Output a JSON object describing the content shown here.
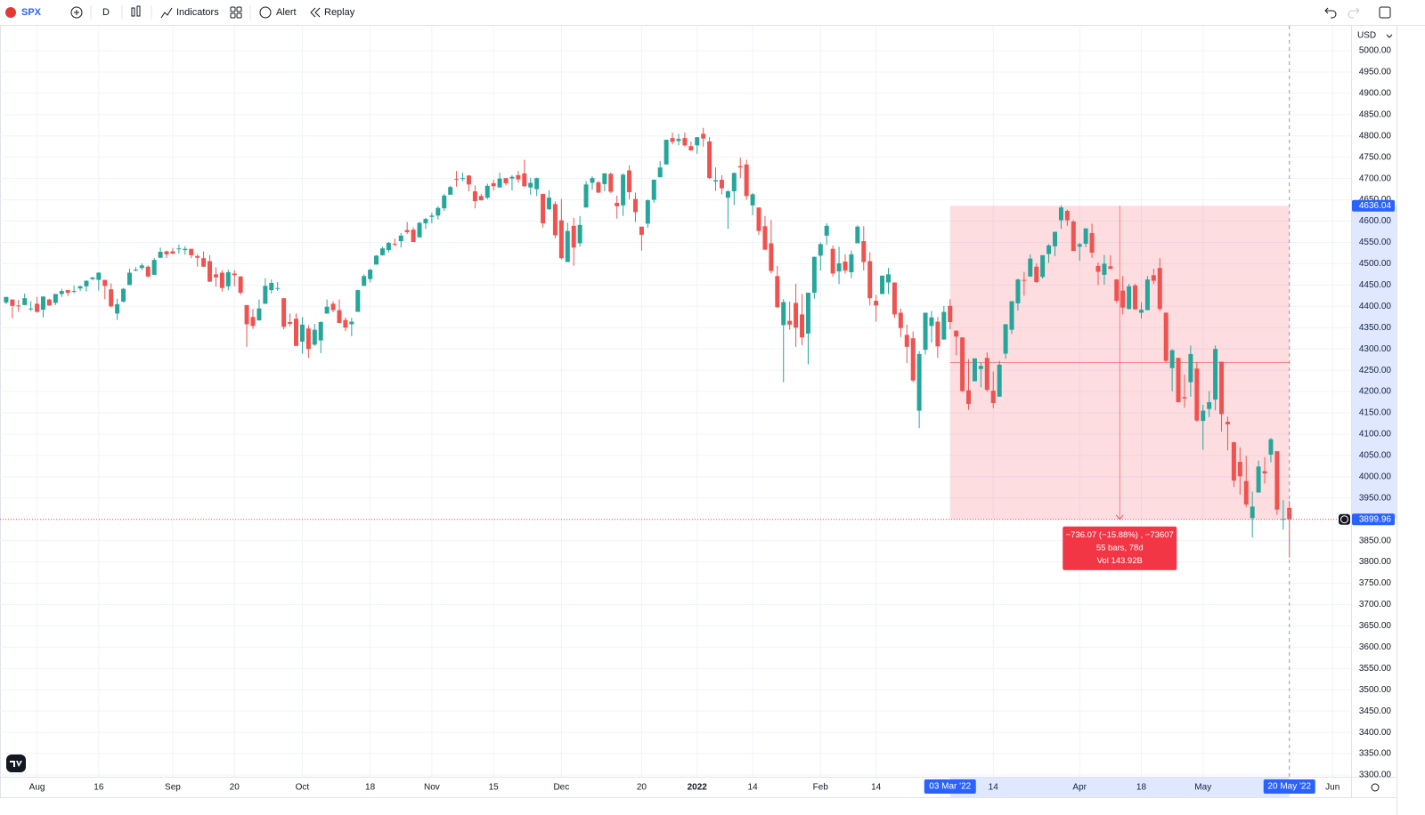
{
  "toolbar": {
    "symbol": "SPX",
    "interval": "D",
    "buttons": [
      "Indicators",
      "Alert",
      "Replay"
    ]
  },
  "chart_data": {
    "type": "candlestick",
    "currency": "USD",
    "colors": {
      "up": "#26a69a",
      "down": "#ef5350",
      "range": "#f23645",
      "axis_marker": "#2962ff"
    },
    "grid": true,
    "xlim": [
      -1,
      218
    ],
    "ylim": [
      3300,
      5000
    ],
    "xticks": [
      {
        "value": 5,
        "label": "Aug"
      },
      {
        "value": 15,
        "label": "16"
      },
      {
        "value": 27,
        "label": "Sep"
      },
      {
        "value": 37,
        "label": "20"
      },
      {
        "value": 48,
        "label": "Oct"
      },
      {
        "value": 59,
        "label": "18"
      },
      {
        "value": 69,
        "label": "Nov"
      },
      {
        "value": 79,
        "label": "15"
      },
      {
        "value": 90,
        "label": "Dec"
      },
      {
        "value": 103,
        "label": "20"
      },
      {
        "value": 112,
        "label": "2022"
      },
      {
        "value": 121,
        "label": "14"
      },
      {
        "value": 132,
        "label": "Feb"
      },
      {
        "value": 141,
        "label": "14"
      },
      {
        "value": 160,
        "label": "14"
      },
      {
        "value": 174,
        "label": "Apr"
      },
      {
        "value": 184,
        "label": "18"
      },
      {
        "value": 194,
        "label": "May"
      },
      {
        "value": 215,
        "label": "Jun"
      }
    ],
    "yticks": [
      {
        "value": 3300,
        "label": "3300.00"
      },
      {
        "value": 3350,
        "label": "3350.00"
      },
      {
        "value": 3400,
        "label": "3400.00"
      },
      {
        "value": 3450,
        "label": "3450.00"
      },
      {
        "value": 3500,
        "label": "3500.00"
      },
      {
        "value": 3550,
        "label": "3550.00"
      },
      {
        "value": 3600,
        "label": "3600.00"
      },
      {
        "value": 3650,
        "label": "3650.00"
      },
      {
        "value": 3700,
        "label": "3700.00"
      },
      {
        "value": 3750,
        "label": "3750.00"
      },
      {
        "value": 3800,
        "label": "3800.00"
      },
      {
        "value": 3850,
        "label": "3850.00"
      },
      {
        "value": 3900,
        "label": "3900.00"
      },
      {
        "value": 3950,
        "label": "3950.00"
      },
      {
        "value": 4000,
        "label": "4000.00"
      },
      {
        "value": 4050,
        "label": "4050.00"
      },
      {
        "value": 4100,
        "label": "4100.00"
      },
      {
        "value": 4150,
        "label": "4150.00"
      },
      {
        "value": 4200,
        "label": "4200.00"
      },
      {
        "value": 4250,
        "label": "4250.00"
      },
      {
        "value": 4300,
        "label": "4300.00"
      },
      {
        "value": 4350,
        "label": "4350.00"
      },
      {
        "value": 4400,
        "label": "4400.00"
      },
      {
        "value": 4450,
        "label": "4450.00"
      },
      {
        "value": 4500,
        "label": "4500.00"
      },
      {
        "value": 4550,
        "label": "4550.00"
      },
      {
        "value": 4600,
        "label": "4600.00"
      },
      {
        "value": 4650,
        "label": "4650.00"
      },
      {
        "value": 4700,
        "label": "4700.00"
      },
      {
        "value": 4750,
        "label": "4750.00"
      },
      {
        "value": 4800,
        "label": "4800.00"
      },
      {
        "value": 4850,
        "label": "4850.00"
      },
      {
        "value": 4900,
        "label": "4900.00"
      },
      {
        "value": 4950,
        "label": "4950.00"
      },
      {
        "value": 5000,
        "label": "5000.00"
      }
    ],
    "price_markers": [
      4636.04,
      3899.96
    ],
    "range_start": {
      "value": 153,
      "label": "03 Mar '22"
    },
    "range_end": {
      "value": 208,
      "label": "20 May '22"
    },
    "measure_lines": [
      "−736.07 (−15.88%) , −73607",
      "55 bars, 78d",
      "Vol 143.92B"
    ],
    "candles": [
      [
        4409,
        4422,
        4405,
        4422
      ],
      [
        4416,
        4416,
        4372,
        4401
      ],
      [
        4402,
        4415,
        4387,
        4400
      ],
      [
        4403,
        4430,
        4403,
        4419
      ],
      [
        4395,
        4412,
        4389,
        4395
      ],
      [
        4406,
        4422,
        4385,
        4387
      ],
      [
        4392,
        4423,
        4374,
        4423
      ],
      [
        4416,
        4418,
        4401,
        4402
      ],
      [
        4408,
        4429,
        4403,
        4429
      ],
      [
        4429,
        4441,
        4422,
        4436
      ],
      [
        4438,
        4439,
        4424,
        4432
      ],
      [
        4436,
        4449,
        4431,
        4436
      ],
      [
        4442,
        4449,
        4436,
        4447
      ],
      [
        4447,
        4461,
        4435,
        4460
      ],
      [
        4464,
        4468,
        4461,
        4468
      ],
      [
        4462,
        4480,
        4437,
        4479
      ],
      [
        4462,
        4462,
        4417,
        4448
      ],
      [
        4440,
        4454,
        4397,
        4400
      ],
      [
        4383,
        4418,
        4368,
        4405
      ],
      [
        4411,
        4443,
        4409,
        4441
      ],
      [
        4450,
        4489,
        4450,
        4479
      ],
      [
        4484,
        4492,
        4482,
        4486
      ],
      [
        4490,
        4501,
        4485,
        4496
      ],
      [
        4493,
        4496,
        4468,
        4470
      ],
      [
        4474,
        4513,
        4474,
        4509
      ],
      [
        4514,
        4538,
        4513,
        4528
      ],
      [
        4529,
        4531,
        4513,
        4522
      ],
      [
        4529,
        4537,
        4522,
        4524
      ],
      [
        4534,
        4545,
        4524,
        4536
      ],
      [
        4532,
        4541,
        4521,
        4535
      ],
      [
        4535,
        4535,
        4513,
        4520
      ],
      [
        4518,
        4522,
        4493,
        4514
      ],
      [
        4513,
        4529,
        4493,
        4493
      ],
      [
        4506,
        4520,
        4457,
        4458
      ],
      [
        4475,
        4492,
        4446,
        4468
      ],
      [
        4479,
        4485,
        4435,
        4443
      ],
      [
        4447,
        4486,
        4438,
        4480
      ],
      [
        4477,
        4485,
        4447,
        4473
      ],
      [
        4470,
        4471,
        4427,
        4432
      ],
      [
        4403,
        4403,
        4305,
        4358
      ],
      [
        4375,
        4394,
        4347,
        4354
      ],
      [
        4367,
        4416,
        4367,
        4395
      ],
      [
        4406,
        4466,
        4406,
        4448
      ],
      [
        4438,
        4463,
        4430,
        4455
      ],
      [
        4443,
        4457,
        4436,
        4443
      ],
      [
        4419,
        4419,
        4346,
        4352
      ],
      [
        4363,
        4383,
        4353,
        4359
      ],
      [
        4371,
        4383,
        4307,
        4307
      ],
      [
        4317,
        4375,
        4289,
        4357
      ],
      [
        4348,
        4356,
        4279,
        4300
      ],
      [
        4310,
        4359,
        4307,
        4345
      ],
      [
        4320,
        4365,
        4290,
        4363
      ],
      [
        4383,
        4416,
        4383,
        4399
      ],
      [
        4406,
        4412,
        4386,
        4391
      ],
      [
        4391,
        4416,
        4361,
        4361
      ],
      [
        4368,
        4374,
        4342,
        4350
      ],
      [
        4358,
        4373,
        4330,
        4364
      ],
      [
        4387,
        4439,
        4387,
        4438
      ],
      [
        4448,
        4475,
        4448,
        4471
      ],
      [
        4464,
        4488,
        4456,
        4486
      ],
      [
        4498,
        4520,
        4498,
        4519
      ],
      [
        4520,
        4540,
        4519,
        4536
      ],
      [
        4532,
        4551,
        4527,
        4549
      ],
      [
        4547,
        4559,
        4541,
        4545
      ],
      [
        4553,
        4572,
        4538,
        4566
      ],
      [
        4579,
        4598,
        4570,
        4574
      ],
      [
        4580,
        4585,
        4551,
        4551
      ],
      [
        4562,
        4598,
        4562,
        4596
      ],
      [
        4595,
        4608,
        4582,
        4605
      ],
      [
        4610,
        4620,
        4595,
        4613
      ],
      [
        4613,
        4635,
        4604,
        4631
      ],
      [
        4630,
        4664,
        4624,
        4660
      ],
      [
        4662,
        4683,
        4662,
        4680
      ],
      [
        4699,
        4718,
        4681,
        4697
      ],
      [
        4701,
        4714,
        4694,
        4701
      ],
      [
        4707,
        4708,
        4670,
        4686
      ],
      [
        4670,
        4684,
        4630,
        4647
      ],
      [
        4659,
        4664,
        4648,
        4649
      ],
      [
        4655,
        4688,
        4651,
        4683
      ],
      [
        4689,
        4697,
        4672,
        4682
      ],
      [
        4679,
        4714,
        4679,
        4700
      ],
      [
        4701,
        4701,
        4684,
        4689
      ],
      [
        4700,
        4708,
        4672,
        4704
      ],
      [
        4708,
        4718,
        4690,
        4698
      ],
      [
        4712,
        4744,
        4680,
        4682
      ],
      [
        4679,
        4702,
        4662,
        4690
      ],
      [
        4675,
        4702,
        4659,
        4701
      ],
      [
        4664,
        4664,
        4585,
        4595
      ],
      [
        4628,
        4672,
        4626,
        4655
      ],
      [
        4640,
        4646,
        4560,
        4567
      ],
      [
        4602,
        4652,
        4510,
        4513
      ],
      [
        4504,
        4596,
        4504,
        4577
      ],
      [
        4589,
        4608,
        4495,
        4538
      ],
      [
        4548,
        4612,
        4540,
        4591
      ],
      [
        4632,
        4694,
        4632,
        4686
      ],
      [
        4690,
        4705,
        4674,
        4701
      ],
      [
        4691,
        4695,
        4666,
        4667
      ],
      [
        4687,
        4713,
        4670,
        4712
      ],
      [
        4711,
        4714,
        4666,
        4669
      ],
      [
        4643,
        4660,
        4606,
        4635
      ],
      [
        4637,
        4712,
        4612,
        4709
      ],
      [
        4719,
        4731,
        4651,
        4668
      ],
      [
        4652,
        4667,
        4598,
        4621
      ],
      [
        4587,
        4587,
        4531,
        4568
      ],
      [
        4594,
        4651,
        4584,
        4649
      ],
      [
        4650,
        4698,
        4643,
        4697
      ],
      [
        4703,
        4741,
        4703,
        4726
      ],
      [
        4733,
        4791,
        4733,
        4791
      ],
      [
        4795,
        4808,
        4780,
        4786
      ],
      [
        4788,
        4805,
        4778,
        4793
      ],
      [
        4795,
        4808,
        4775,
        4778
      ],
      [
        4776,
        4787,
        4765,
        4766
      ],
      [
        4778,
        4797,
        4758,
        4797
      ],
      [
        4805,
        4819,
        4775,
        4794
      ],
      [
        4787,
        4797,
        4699,
        4701
      ],
      [
        4693,
        4726,
        4671,
        4696
      ],
      [
        4697,
        4708,
        4663,
        4677
      ],
      [
        4655,
        4673,
        4582,
        4670
      ],
      [
        4670,
        4714,
        4638,
        4713
      ],
      [
        4729,
        4749,
        4701,
        4726
      ],
      [
        4733,
        4744,
        4650,
        4659
      ],
      [
        4637,
        4666,
        4614,
        4663
      ],
      [
        4632,
        4632,
        4568,
        4577
      ],
      [
        4588,
        4612,
        4532,
        4533
      ],
      [
        4548,
        4603,
        4477,
        4483
      ],
      [
        4471,
        4495,
        4396,
        4398
      ],
      [
        4356,
        4417,
        4222,
        4410
      ],
      [
        4366,
        4411,
        4345,
        4357
      ],
      [
        4408,
        4453,
        4305,
        4350
      ],
      [
        4381,
        4429,
        4309,
        4327
      ],
      [
        4336,
        4432,
        4264,
        4432
      ],
      [
        4432,
        4517,
        4418,
        4516
      ],
      [
        4519,
        4550,
        4484,
        4546
      ],
      [
        4566,
        4595,
        4544,
        4589
      ],
      [
        4535,
        4543,
        4470,
        4477
      ],
      [
        4482,
        4540,
        4452,
        4501
      ],
      [
        4505,
        4522,
        4477,
        4484
      ],
      [
        4480,
        4531,
        4466,
        4522
      ],
      [
        4548,
        4590,
        4548,
        4587
      ],
      [
        4553,
        4588,
        4484,
        4504
      ],
      [
        4506,
        4527,
        4402,
        4419
      ],
      [
        4413,
        4427,
        4364,
        4402
      ],
      [
        4429,
        4472,
        4429,
        4472
      ],
      [
        4456,
        4490,
        4429,
        4475
      ],
      [
        4456,
        4456,
        4373,
        4381
      ],
      [
        4385,
        4395,
        4328,
        4349
      ],
      [
        4333,
        4357,
        4267,
        4305
      ],
      [
        4325,
        4341,
        4222,
        4226
      ],
      [
        4155,
        4295,
        4114,
        4288
      ],
      [
        4298,
        4385,
        4287,
        4385
      ],
      [
        4354,
        4389,
        4315,
        4374
      ],
      [
        4364,
        4375,
        4279,
        4306
      ],
      [
        4322,
        4401,
        4322,
        4387
      ],
      [
        4401,
        4417,
        4346,
        4363
      ],
      [
        4343,
        4343,
        4285,
        4329
      ],
      [
        4327,
        4327,
        4199,
        4201
      ],
      [
        4203,
        4276,
        4157,
        4171
      ],
      [
        4224,
        4277,
        4224,
        4278
      ],
      [
        4253,
        4269,
        4210,
        4260
      ],
      [
        4279,
        4292,
        4200,
        4204
      ],
      [
        4202,
        4247,
        4161,
        4173
      ],
      [
        4188,
        4272,
        4188,
        4263
      ],
      [
        4289,
        4358,
        4277,
        4358
      ],
      [
        4345,
        4412,
        4335,
        4412
      ],
      [
        4407,
        4465,
        4390,
        4463
      ],
      [
        4462,
        4481,
        4425,
        4461
      ],
      [
        4470,
        4522,
        4469,
        4512
      ],
      [
        4493,
        4501,
        4455,
        4457
      ],
      [
        4469,
        4520,
        4465,
        4520
      ],
      [
        4523,
        4546,
        4502,
        4543
      ],
      [
        4541,
        4575,
        4518,
        4575
      ],
      [
        4602,
        4637,
        4582,
        4632
      ],
      [
        4624,
        4627,
        4589,
        4602
      ],
      [
        4599,
        4603,
        4530,
        4530
      ],
      [
        4540,
        4549,
        4507,
        4546
      ],
      [
        4547,
        4583,
        4539,
        4583
      ],
      [
        4572,
        4594,
        4514,
        4526
      ],
      [
        4495,
        4503,
        4450,
        4481
      ],
      [
        4474,
        4521,
        4451,
        4500
      ],
      [
        4494,
        4520,
        4487,
        4488
      ],
      [
        4463,
        4464,
        4408,
        4413
      ],
      [
        4437,
        4471,
        4381,
        4397
      ],
      [
        4394,
        4453,
        4392,
        4447
      ],
      [
        4449,
        4453,
        4392,
        4393
      ],
      [
        4385,
        4410,
        4371,
        4392
      ],
      [
        4391,
        4471,
        4391,
        4463
      ],
      [
        4473,
        4488,
        4452,
        4460
      ],
      [
        4490,
        4513,
        4389,
        4394
      ],
      [
        4385,
        4386,
        4268,
        4272
      ],
      [
        4255,
        4299,
        4201,
        4297
      ],
      [
        4279,
        4279,
        4174,
        4175
      ],
      [
        4187,
        4240,
        4162,
        4184
      ],
      [
        4222,
        4308,
        4188,
        4288
      ],
      [
        4254,
        4269,
        4129,
        4132
      ],
      [
        4131,
        4169,
        4063,
        4155
      ],
      [
        4159,
        4201,
        4140,
        4175
      ],
      [
        4181,
        4308,
        4156,
        4300
      ],
      [
        4270,
        4270,
        4106,
        4147
      ],
      [
        4129,
        4141,
        4062,
        4123
      ],
      [
        4081,
        4082,
        3976,
        3991
      ],
      [
        4035,
        4069,
        3958,
        4001
      ],
      [
        3990,
        4049,
        3929,
        3935
      ],
      [
        3903,
        3965,
        3858,
        3930
      ],
      [
        3963,
        4038,
        3963,
        4024
      ],
      [
        4013,
        4046,
        3984,
        4008
      ],
      [
        4052,
        4091,
        4034,
        4088
      ],
      [
        4060,
        4060,
        3911,
        3923
      ],
      [
        3900,
        3945,
        3876,
        3901
      ],
      [
        3927,
        3943,
        3810,
        3899.96
      ]
    ]
  }
}
